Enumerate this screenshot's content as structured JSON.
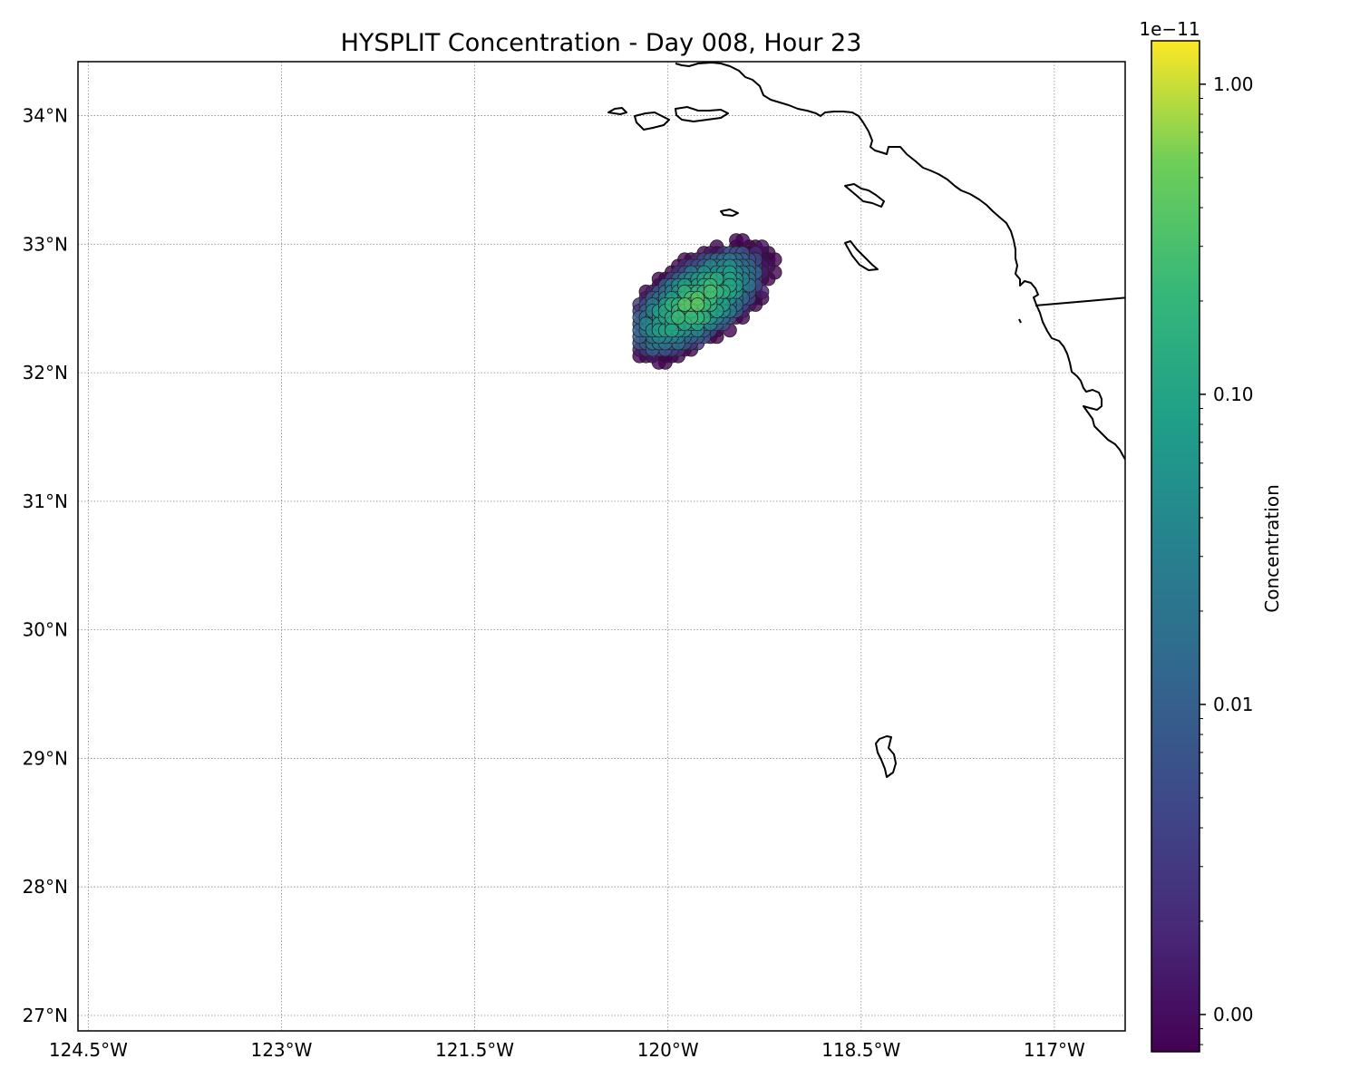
{
  "title": "HYSPLIT Concentration - Day 008, Hour 23",
  "map": {
    "lon_range": [
      -124.58,
      -116.45
    ],
    "lat_range": [
      26.88,
      34.42
    ],
    "lon_ticks": [
      {
        "value": -124.5,
        "label": "124.5°W"
      },
      {
        "value": -123.0,
        "label": "123°W"
      },
      {
        "value": -121.5,
        "label": "121.5°W"
      },
      {
        "value": -120.0,
        "label": "120°W"
      },
      {
        "value": -118.5,
        "label": "118.5°W"
      },
      {
        "value": -117.0,
        "label": "117°W"
      }
    ],
    "lat_ticks": [
      {
        "value": 34,
        "label": "34°N"
      },
      {
        "value": 33,
        "label": "33°N"
      },
      {
        "value": 32,
        "label": "32°N"
      },
      {
        "value": 31,
        "label": "31°N"
      },
      {
        "value": 30,
        "label": "30°N"
      },
      {
        "value": 29,
        "label": "29°N"
      },
      {
        "value": 28,
        "label": "28°N"
      },
      {
        "value": 27,
        "label": "27°N"
      }
    ],
    "gridlines": true,
    "coastline_color": "#000000",
    "grid_color": "#888888"
  },
  "colorbar": {
    "label": "Concentration",
    "exponent_label": "1e−11",
    "ticks": [
      {
        "value": 1.0,
        "label": "1.00"
      },
      {
        "value": 0.1,
        "label": "0.10"
      },
      {
        "value": 0.01,
        "label": "0.01"
      },
      {
        "value": 0.001,
        "label": "0.00"
      }
    ],
    "range_log10": [
      -3.12,
      0.14
    ],
    "colormap": "viridis",
    "marker_alpha": 0.8
  },
  "plume": {
    "center_lon": -119.78,
    "center_lat": 32.55,
    "grid_step_deg": 0.05,
    "approx_peak_value": 0.25
  }
}
